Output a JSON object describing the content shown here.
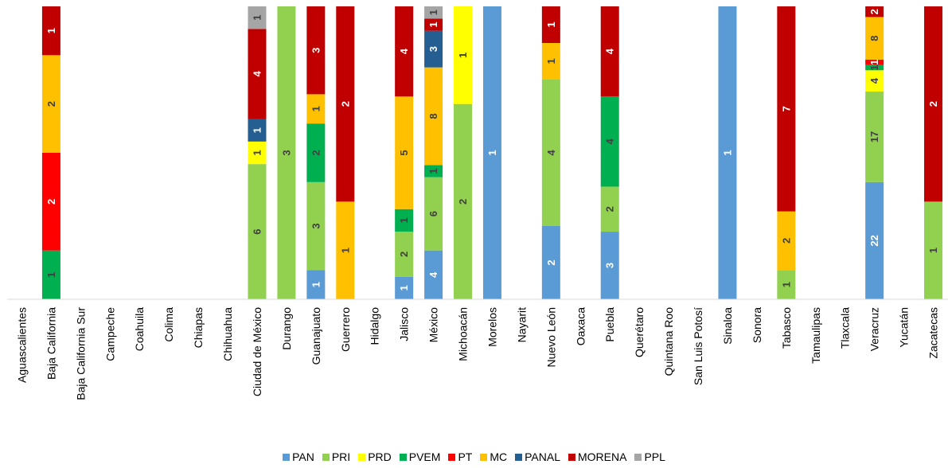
{
  "chart_data": {
    "type": "bar",
    "stacked": true,
    "normalized": true,
    "categories": [
      "Aguascalientes",
      "Baja California",
      "Baja California Sur",
      "Campeche",
      "Coahuila",
      "Colima",
      "Chiapas",
      "Chihuahua",
      "Ciudad de México",
      "Durango",
      "Guanajuato",
      "Guerrero",
      "Hidalgo",
      "Jalisco",
      "México",
      "Michoacán",
      "Morelos",
      "Nayarit",
      "Nuevo León",
      "Oaxaca",
      "Puebla",
      "Querétaro",
      "Quintana Roo",
      "San Luis Potosí",
      "Sinaloa",
      "Sonora",
      "Tabasco",
      "Tamaulipas",
      "Tlaxcala",
      "Veracruz",
      "Yucatán",
      "Zacatecas"
    ],
    "series": [
      {
        "name": "PAN",
        "color": "#5B9BD5",
        "values": [
          0,
          0,
          0,
          0,
          0,
          0,
          0,
          0,
          0,
          0,
          1,
          0,
          0,
          1,
          4,
          0,
          1,
          0,
          2,
          0,
          3,
          0,
          0,
          0,
          1,
          0,
          0,
          0,
          0,
          22,
          0,
          0
        ]
      },
      {
        "name": "PRI",
        "color": "#92D050",
        "values": [
          0,
          0,
          0,
          0,
          0,
          0,
          0,
          0,
          6,
          3,
          3,
          0,
          0,
          2,
          6,
          2,
          0,
          0,
          4,
          0,
          2,
          0,
          0,
          0,
          0,
          0,
          1,
          0,
          0,
          17,
          0,
          1
        ]
      },
      {
        "name": "PRD",
        "color": "#FFFF00",
        "values": [
          0,
          0,
          0,
          0,
          0,
          0,
          0,
          0,
          1,
          0,
          0,
          0,
          0,
          0,
          0,
          1,
          0,
          0,
          0,
          0,
          0,
          0,
          0,
          0,
          0,
          0,
          0,
          0,
          0,
          4,
          0,
          0
        ]
      },
      {
        "name": "PVEM",
        "color": "#00B050",
        "values": [
          0,
          1,
          0,
          0,
          0,
          0,
          0,
          0,
          0,
          0,
          2,
          0,
          0,
          1,
          1,
          0,
          0,
          0,
          0,
          0,
          4,
          0,
          0,
          0,
          0,
          0,
          0,
          0,
          0,
          1,
          0,
          0
        ]
      },
      {
        "name": "PT",
        "color": "#FF0000",
        "values": [
          0,
          2,
          0,
          0,
          0,
          0,
          0,
          0,
          0,
          0,
          0,
          0,
          0,
          0,
          0,
          0,
          0,
          0,
          0,
          0,
          0,
          0,
          0,
          0,
          0,
          0,
          0,
          0,
          0,
          1,
          0,
          0
        ]
      },
      {
        "name": "MC",
        "color": "#FFC000",
        "values": [
          0,
          2,
          0,
          0,
          0,
          0,
          0,
          0,
          0,
          0,
          1,
          1,
          0,
          5,
          8,
          0,
          0,
          0,
          1,
          0,
          0,
          0,
          0,
          0,
          0,
          0,
          2,
          0,
          0,
          8,
          0,
          0
        ]
      },
      {
        "name": "PANAL",
        "color": "#255E91",
        "values": [
          0,
          0,
          0,
          0,
          0,
          0,
          0,
          0,
          1,
          0,
          0,
          0,
          0,
          0,
          3,
          0,
          0,
          0,
          0,
          0,
          0,
          0,
          0,
          0,
          0,
          0,
          0,
          0,
          0,
          0,
          0,
          0
        ]
      },
      {
        "name": "MORENA",
        "color": "#C00000",
        "values": [
          0,
          1,
          0,
          0,
          0,
          0,
          0,
          0,
          4,
          0,
          3,
          2,
          0,
          4,
          1,
          0,
          0,
          0,
          1,
          0,
          4,
          0,
          0,
          0,
          0,
          0,
          7,
          0,
          0,
          2,
          0,
          2
        ]
      },
      {
        "name": "PPL",
        "color": "#A5A5A5",
        "values": [
          0,
          0,
          0,
          0,
          0,
          0,
          0,
          0,
          1,
          0,
          0,
          0,
          0,
          0,
          1,
          0,
          0,
          0,
          0,
          0,
          0,
          0,
          0,
          0,
          0,
          0,
          0,
          0,
          0,
          0,
          0,
          0
        ]
      }
    ],
    "title": "",
    "xlabel": "",
    "ylabel": "",
    "ylim": [
      0,
      1
    ],
    "grid": false,
    "legend": "bottom"
  }
}
